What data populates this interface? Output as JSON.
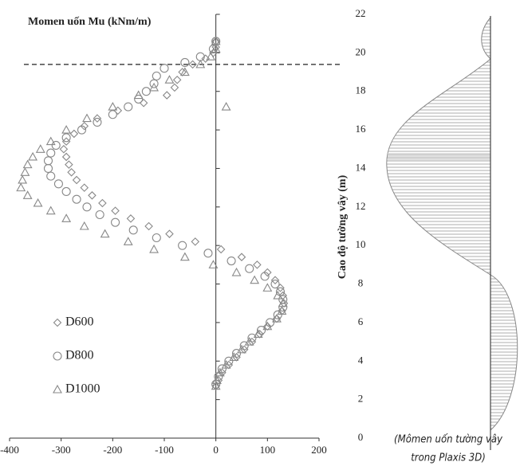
{
  "chart_data": {
    "type": "scatter",
    "title": "Momen uốn Mu (kNm/m)",
    "y_label": "Cao độ tường vây (m)",
    "xlim": [
      -400,
      200
    ],
    "xticks": [
      -400,
      -300,
      -200,
      -100,
      0,
      100,
      200
    ],
    "ylim": [
      0,
      22
    ],
    "yticks": [
      0,
      2,
      4,
      6,
      8,
      10,
      12,
      14,
      16,
      18,
      20,
      22
    ],
    "hline": 19.4,
    "legend": "lower-left",
    "series": [
      {
        "name": "D600",
        "marker": "diamond",
        "color": "#888888",
        "x": [
          0,
          0,
          -5,
          -20,
          -45,
          -65,
          -75,
          -80,
          -95,
          -140,
          -190,
          -230,
          -255,
          -275,
          -290,
          -295,
          -290,
          -285,
          -280,
          -270,
          -255,
          -240,
          -220,
          -195,
          -165,
          -130,
          -90,
          -40,
          10,
          50,
          80,
          100,
          115,
          125,
          130,
          132,
          128,
          118,
          100,
          85,
          70,
          55,
          40,
          25,
          12,
          5,
          0
        ],
        "y": [
          20.6,
          20.3,
          20.0,
          19.7,
          19.4,
          19.0,
          18.6,
          18.2,
          17.8,
          17.4,
          17.0,
          16.6,
          16.2,
          15.8,
          15.4,
          15.0,
          14.6,
          14.2,
          13.8,
          13.4,
          13.0,
          12.6,
          12.2,
          11.8,
          11.4,
          11.0,
          10.6,
          10.2,
          9.8,
          9.4,
          9.0,
          8.6,
          8.2,
          7.8,
          7.4,
          7.0,
          6.6,
          6.2,
          5.8,
          5.4,
          5.0,
          4.6,
          4.2,
          3.8,
          3.4,
          3.0,
          2.7
        ]
      },
      {
        "name": "D800",
        "marker": "circle",
        "color": "#888888",
        "x": [
          0,
          -5,
          -30,
          -60,
          -100,
          -115,
          -120,
          -135,
          -150,
          -170,
          -200,
          -230,
          -260,
          -290,
          -310,
          -320,
          -325,
          -325,
          -320,
          -305,
          -290,
          -270,
          -250,
          -225,
          -195,
          -160,
          -115,
          -65,
          -15,
          30,
          65,
          95,
          115,
          125,
          130,
          130,
          120,
          105,
          88,
          70,
          55,
          40,
          25,
          12,
          5,
          0
        ],
        "y": [
          20.6,
          20.2,
          19.8,
          19.5,
          19.2,
          18.8,
          18.4,
          18.0,
          17.6,
          17.2,
          16.8,
          16.4,
          16.0,
          15.6,
          15.2,
          14.8,
          14.4,
          14.0,
          13.6,
          13.2,
          12.8,
          12.4,
          12.0,
          11.6,
          11.2,
          10.8,
          10.4,
          10.0,
          9.6,
          9.2,
          8.8,
          8.4,
          8.0,
          7.6,
          7.2,
          6.8,
          6.4,
          6.0,
          5.6,
          5.2,
          4.8,
          4.4,
          4.0,
          3.6,
          3.2,
          2.8
        ]
      },
      {
        "name": "D1000",
        "marker": "triangle",
        "color": "#888888",
        "x": [
          0,
          0,
          -10,
          -30,
          -60,
          -90,
          -120,
          -150,
          -200,
          -250,
          -290,
          -320,
          -340,
          -355,
          -365,
          -370,
          -375,
          -378,
          -365,
          -345,
          -320,
          -290,
          -255,
          -215,
          -170,
          -120,
          -60,
          -5,
          40,
          75,
          100,
          120,
          130,
          128,
          118,
          100,
          82,
          65,
          50,
          35,
          20,
          8,
          2,
          0,
          20
        ],
        "y": [
          20.6,
          20.2,
          19.8,
          19.4,
          19.0,
          18.6,
          18.2,
          17.8,
          17.2,
          16.6,
          16.0,
          15.4,
          15.0,
          14.6,
          14.2,
          13.8,
          13.4,
          13.0,
          12.6,
          12.2,
          11.8,
          11.4,
          11.0,
          10.6,
          10.2,
          9.8,
          9.4,
          9.0,
          8.6,
          8.2,
          7.8,
          7.4,
          7.0,
          6.6,
          6.2,
          5.8,
          5.4,
          5.0,
          4.6,
          4.2,
          3.8,
          3.4,
          3.0,
          2.7,
          17.2
        ]
      }
    ]
  },
  "side_figure": {
    "caption": [
      "(Mômen uốn tường vây",
      "trong Plaxis 3D)"
    ]
  }
}
